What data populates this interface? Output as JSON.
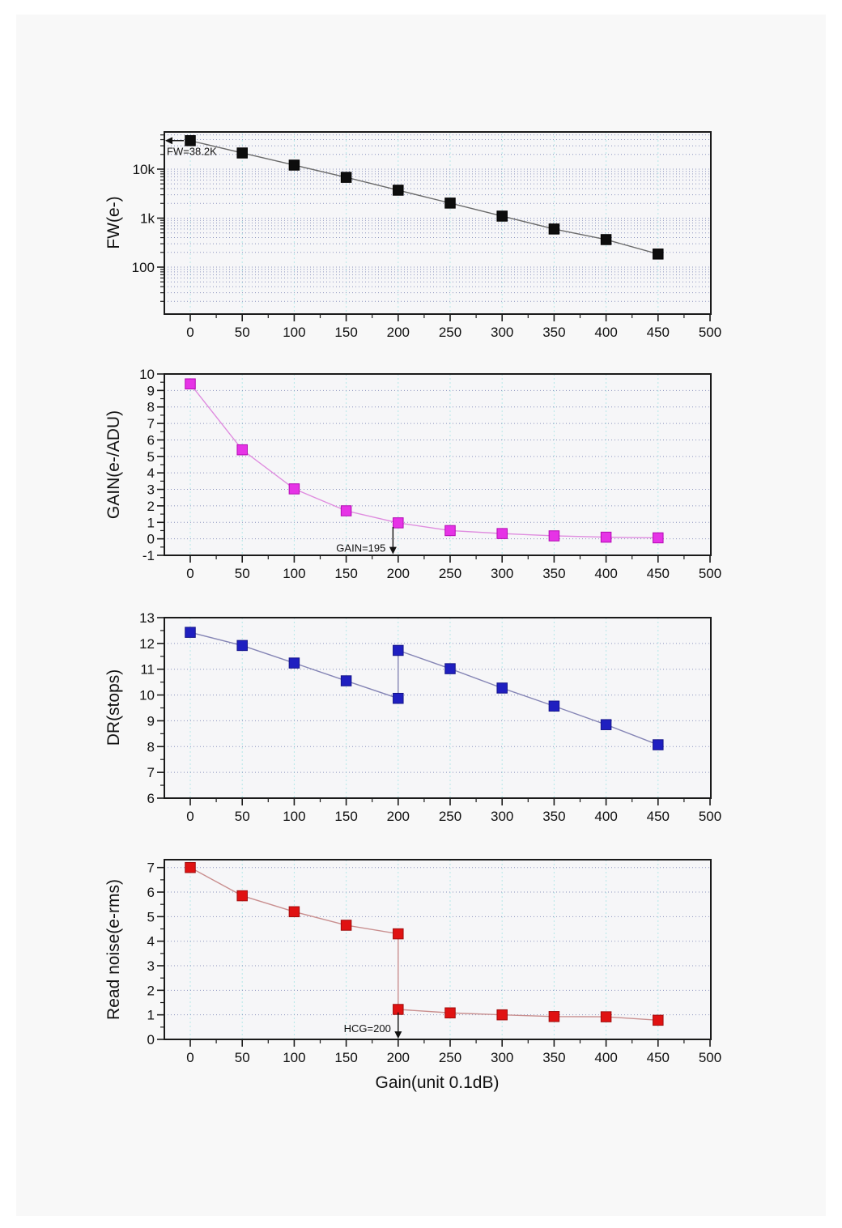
{
  "figure": {
    "xlabel": "Gain(unit 0.1dB)",
    "x_major_ticks": [
      0,
      50,
      100,
      150,
      200,
      250,
      300,
      350,
      400,
      450,
      500
    ],
    "x_tick_labels": [
      "0",
      "50",
      "100",
      "150",
      "200",
      "250",
      "300",
      "350",
      "400",
      "450",
      "500"
    ],
    "x_grid": [
      0,
      50,
      100,
      150,
      200,
      250,
      300,
      350,
      400,
      450
    ],
    "xlim": [
      -25,
      500
    ],
    "panel_bg": "#f8f8f8",
    "plot_bg": "#f6f6f8",
    "frame_color": "#1a1a1a",
    "grid_v_color": "#b5e8e8",
    "grid_h_color": "#8a92bd",
    "text_color": "#111111"
  },
  "chart_data": [
    {
      "name": "full-well",
      "type": "line",
      "ylabel": "FW(e-)",
      "yscale": "log",
      "ylim": [
        11,
        57500
      ],
      "yticks": [
        {
          "value": 10000,
          "label": "10k"
        },
        {
          "value": 1000,
          "label": "1k"
        },
        {
          "value": 100,
          "label": "100"
        }
      ],
      "grid_y": [
        20,
        30,
        40,
        50,
        60,
        70,
        80,
        90,
        100,
        200,
        300,
        400,
        500,
        600,
        700,
        800,
        900,
        1000,
        2000,
        3000,
        4000,
        5000,
        6000,
        7000,
        8000,
        9000,
        10000,
        20000,
        30000,
        40000,
        50000
      ],
      "x": [
        0,
        50,
        100,
        150,
        200,
        250,
        300,
        350,
        400,
        450
      ],
      "values": [
        38200,
        21400,
        12100,
        6800,
        3720,
        2030,
        1100,
        600,
        365,
        185
      ],
      "marker_color": "#0d0d0d",
      "marker_edge": "#000000",
      "line_color": "#6a6a6a",
      "annotation": {
        "text": "FW=38.2K",
        "direction": "left",
        "x": 0,
        "y": 38200
      }
    },
    {
      "name": "gain",
      "type": "line",
      "ylabel": "GAIN(e-/ADU)",
      "yscale": "linear",
      "ylim": [
        -1,
        10
      ],
      "yticks": [
        {
          "value": 10,
          "label": "10"
        },
        {
          "value": 9,
          "label": "9"
        },
        {
          "value": 8,
          "label": "8"
        },
        {
          "value": 7,
          "label": "7"
        },
        {
          "value": 6,
          "label": "6"
        },
        {
          "value": 5,
          "label": "5"
        },
        {
          "value": 4,
          "label": "4"
        },
        {
          "value": 3,
          "label": "3"
        },
        {
          "value": 2,
          "label": "2"
        },
        {
          "value": 1,
          "label": "1"
        },
        {
          "value": 0,
          "label": "0"
        },
        {
          "value": -1,
          "label": "-1"
        }
      ],
      "grid_y": [
        0,
        1,
        2,
        3,
        4,
        5,
        6,
        7,
        8,
        9
      ],
      "x": [
        0,
        50,
        100,
        150,
        200,
        250,
        300,
        350,
        400,
        450
      ],
      "values": [
        9.4,
        5.4,
        3.03,
        1.7,
        0.97,
        0.5,
        0.32,
        0.18,
        0.1,
        0.06
      ],
      "marker_color": "#e633e6",
      "marker_edge": "#b30ab3",
      "line_color": "#df8cdf",
      "annotation": {
        "text": "GAIN=195",
        "direction": "down",
        "x": 195,
        "from_y": 0.72,
        "to_y": -0.93,
        "label_y": -0.55
      }
    },
    {
      "name": "dynamic-range",
      "type": "line",
      "ylabel": "DR(stops)",
      "yscale": "linear",
      "ylim": [
        6,
        13
      ],
      "yticks": [
        {
          "value": 13,
          "label": "13"
        },
        {
          "value": 12,
          "label": "12"
        },
        {
          "value": 11,
          "label": "11"
        },
        {
          "value": 10,
          "label": "10"
        },
        {
          "value": 9,
          "label": "9"
        },
        {
          "value": 8,
          "label": "8"
        },
        {
          "value": 7,
          "label": "7"
        },
        {
          "value": 6,
          "label": "6"
        }
      ],
      "grid_y": [
        7,
        8,
        9,
        10,
        11,
        12
      ],
      "x": [
        0,
        50,
        100,
        150,
        200,
        200,
        250,
        300,
        350,
        400,
        450
      ],
      "values": [
        12.43,
        11.92,
        11.24,
        10.55,
        9.87,
        11.73,
        11.02,
        10.27,
        9.57,
        8.85,
        8.07
      ],
      "marker_color": "#1f1fc0",
      "marker_edge": "#14148a",
      "line_color": "#8585b5",
      "annotation": null
    },
    {
      "name": "read-noise",
      "type": "line",
      "ylabel": "Read noise(e-rms)",
      "yscale": "linear",
      "ylim": [
        0,
        7.32
      ],
      "yticks": [
        {
          "value": 7,
          "label": "7"
        },
        {
          "value": 6,
          "label": "6"
        },
        {
          "value": 5,
          "label": "5"
        },
        {
          "value": 4,
          "label": "4"
        },
        {
          "value": 3,
          "label": "3"
        },
        {
          "value": 2,
          "label": "2"
        },
        {
          "value": 1,
          "label": "1"
        },
        {
          "value": 0,
          "label": "0"
        }
      ],
      "grid_y": [
        1,
        2,
        3,
        4,
        5,
        6,
        7
      ],
      "x": [
        0,
        50,
        100,
        150,
        200,
        200,
        250,
        300,
        350,
        400,
        450
      ],
      "values": [
        7.0,
        5.85,
        5.2,
        4.65,
        4.3,
        1.22,
        1.08,
        1.0,
        0.93,
        0.92,
        0.78
      ],
      "marker_color": "#e01212",
      "marker_edge": "#a00c0c",
      "line_color": "#c98f8f",
      "annotation": {
        "text": "HCG=200",
        "direction": "down",
        "x": 200,
        "from_y": 1.1,
        "to_y": 0.03,
        "label_y": 0.45
      }
    }
  ]
}
